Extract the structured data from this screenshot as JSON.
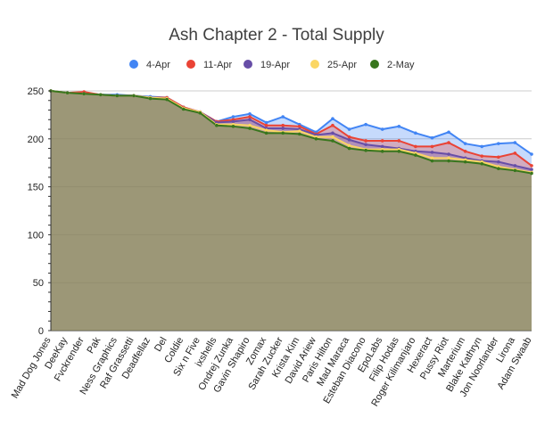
{
  "chart_data": {
    "type": "area",
    "title": "Ash Chapter 2 - Total Supply",
    "xlabel": "",
    "ylabel": "",
    "ylim": [
      0,
      250
    ],
    "yticks": [
      0,
      50,
      100,
      150,
      200,
      250
    ],
    "grid": true,
    "legend_position": "top",
    "categories": [
      "Mad Dog Jones",
      "DeeKay",
      "Fvckrender",
      "Pak",
      "Ness Graphics",
      "Raf Grassetti",
      "Deadfellaz",
      "Del",
      "Coldie",
      "Six n Five",
      "ixshells",
      "Ondrej Zunka",
      "Gavin Shapiro",
      "Zomax",
      "Sarah Zucker",
      "Krista Kim",
      "David Ariew",
      "Paris Hilton",
      "Mad Maraca",
      "Esteban Diacono",
      "EpoLabs",
      "Filip Hodas",
      "Roger Kilimanjaro",
      "Hexeract",
      "Pussy Riot",
      "Marterium",
      "Blake Kathryn",
      "Jon Noorlander",
      "Lirona",
      "Adam Swaab"
    ],
    "series": [
      {
        "name": "4-Apr",
        "color": "#4285f4",
        "values": [
          250,
          248,
          248,
          246,
          246,
          245,
          244,
          243,
          233,
          228,
          218,
          223,
          226,
          217,
          223,
          215,
          207,
          221,
          210,
          215,
          210,
          213,
          206,
          201,
          207,
          195,
          192,
          195,
          196,
          184
        ]
      },
      {
        "name": "11-Apr",
        "color": "#ea4335",
        "values": [
          250,
          248,
          249,
          246,
          245,
          245,
          243,
          243,
          233,
          228,
          218,
          220,
          223,
          214,
          214,
          213,
          205,
          214,
          202,
          198,
          198,
          198,
          192,
          192,
          196,
          187,
          182,
          181,
          185,
          172
        ]
      },
      {
        "name": "19-Apr",
        "color": "#674ea7",
        "values": [
          250,
          248,
          247,
          246,
          245,
          245,
          243,
          242,
          232,
          228,
          217,
          218,
          220,
          211,
          211,
          210,
          204,
          206,
          199,
          194,
          192,
          190,
          187,
          186,
          184,
          180,
          177,
          176,
          172,
          168
        ]
      },
      {
        "name": "25-Apr",
        "color": "#fbd663",
        "values": [
          250,
          248,
          247,
          246,
          245,
          245,
          243,
          242,
          232,
          228,
          215,
          215,
          214,
          209,
          207,
          208,
          202,
          202,
          193,
          189,
          189,
          189,
          185,
          180,
          180,
          178,
          176,
          171,
          168,
          165
        ]
      },
      {
        "name": "2-May",
        "color": "#38761d",
        "values": [
          250,
          248,
          247,
          246,
          245,
          245,
          242,
          241,
          231,
          227,
          214,
          213,
          211,
          206,
          206,
          205,
          200,
          198,
          190,
          188,
          187,
          187,
          183,
          177,
          177,
          176,
          174,
          169,
          167,
          164
        ]
      }
    ]
  }
}
